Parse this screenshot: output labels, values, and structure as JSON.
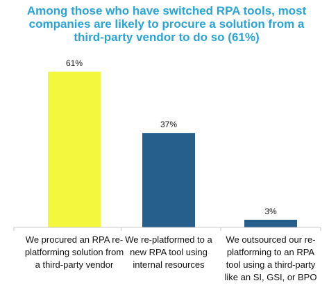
{
  "chart_data": {
    "type": "bar",
    "title_lines": [
      "Among those who have switched RPA tools, most",
      "companies are likely to procure a solution from a",
      "third-party vendor to do so (61%)"
    ],
    "categories": [
      "We procured an RPA re-platforming solution from a third-party vendor",
      "We re-platformed to a new RPA tool using internal resources",
      "We outsourced our re-platforming to an RPA tool using a third-party like an SI, GSI, or BPO"
    ],
    "category_lines": [
      [
        "We procured an RPA re-",
        "platforming  solution from",
        "a third-party vendor"
      ],
      [
        "We re-platformed  to a",
        "new RPA tool using",
        "internal resources"
      ],
      [
        "We outsourced our re-",
        "platforming  to an RPA",
        "tool using a third-party",
        "like an SI, GSI, or BPO"
      ]
    ],
    "values": [
      61,
      37,
      3
    ],
    "value_labels": [
      "61%",
      "37%",
      "3%"
    ],
    "unit": "%",
    "colors": [
      "#f3f83f",
      "#265f8c",
      "#265f8c"
    ],
    "title_color": "#2aa3d6",
    "axis_color": "#c8c8c8",
    "xlabel": "",
    "ylabel": "",
    "ylim": [
      0,
      70
    ],
    "grid": false,
    "legend": "none"
  }
}
